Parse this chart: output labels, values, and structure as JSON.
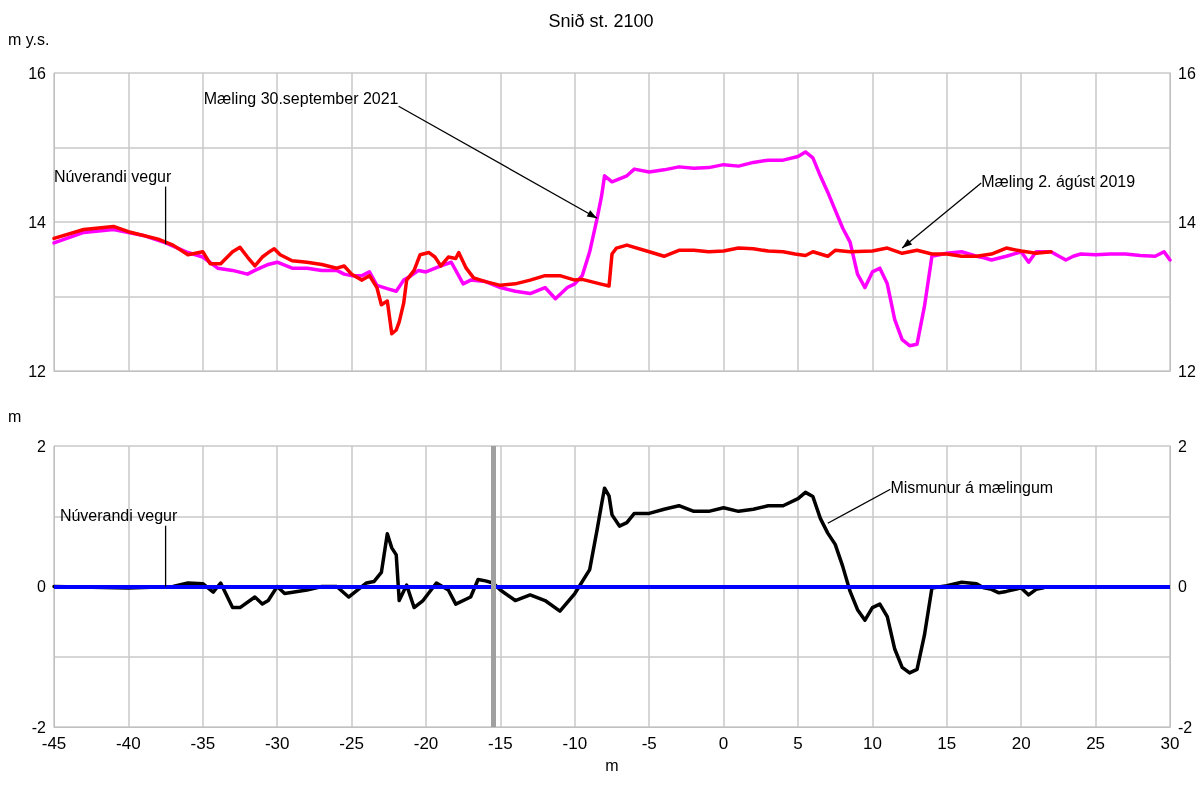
{
  "chart_data": [
    {
      "type": "line",
      "title": "Snið st. 2100",
      "ylabel": "m y.s.",
      "xlim": [
        -45,
        30
      ],
      "xticks": [
        -45,
        -40,
        -35,
        -30,
        -25,
        -20,
        -15,
        -10,
        -5,
        0,
        5,
        10,
        15,
        20,
        25,
        30
      ],
      "ylim": [
        12,
        16
      ],
      "yticks": [
        12,
        {
          "value": 13,
          "label": null
        },
        14,
        {
          "value": 15,
          "label": null
        },
        16
      ],
      "y2lim": [
        12,
        16
      ],
      "y2ticks": [
        12,
        14,
        16
      ],
      "tick_labels": "y",
      "grid": true,
      "line_style": "solid",
      "series": [
        {
          "color": "#ff00ff",
          "x": [
            -45,
            -43,
            -41,
            -39,
            -37.5,
            -36,
            -35,
            -34,
            -33,
            -32,
            -31.5,
            -30.6,
            -30,
            -29,
            -28,
            -27,
            -26,
            -25.5,
            -25,
            -24.3,
            -23.8,
            -23.3,
            -22.5,
            -22,
            -21.5,
            -21,
            -20.5,
            -20,
            -19,
            -18.3,
            -17.5,
            -17,
            -16,
            -15,
            -14,
            -13,
            -12,
            -11.3,
            -10.5,
            -10,
            -9.5,
            -9,
            -8.5,
            -8.2,
            -8,
            -7.5,
            -6.5,
            -6,
            -5,
            -4,
            -3,
            -2,
            -1,
            0,
            1,
            2,
            3,
            4,
            5,
            5.5,
            6,
            6.5,
            7,
            7.5,
            8,
            8.5,
            9,
            9.5,
            10,
            10.5,
            11,
            11.5,
            12,
            12.5,
            13,
            13.5,
            14,
            15,
            16,
            17,
            17.5,
            18,
            19,
            20,
            20.5,
            21,
            22,
            23,
            23.5,
            24,
            25,
            26,
            27,
            28,
            29,
            29.6,
            30
          ],
          "values": [
            13.72,
            13.86,
            13.9,
            13.82,
            13.72,
            13.59,
            13.53,
            13.38,
            13.35,
            13.3,
            13.35,
            13.43,
            13.46,
            13.38,
            13.38,
            13.35,
            13.35,
            13.3,
            13.28,
            13.28,
            13.33,
            13.15,
            13.1,
            13.07,
            13.22,
            13.28,
            13.35,
            13.33,
            13.41,
            13.46,
            13.17,
            13.22,
            13.2,
            13.12,
            13.07,
            13.04,
            13.12,
            12.97,
            13.12,
            13.17,
            13.28,
            13.6,
            14.05,
            14.35,
            14.62,
            14.54,
            14.62,
            14.71,
            14.67,
            14.7,
            14.74,
            14.72,
            14.73,
            14.77,
            14.75,
            14.8,
            14.83,
            14.83,
            14.88,
            14.94,
            14.86,
            14.62,
            14.4,
            14.16,
            13.92,
            13.73,
            13.3,
            13.12,
            13.33,
            13.38,
            13.17,
            12.69,
            12.42,
            12.34,
            12.36,
            12.87,
            13.54,
            13.58,
            13.6,
            13.54,
            13.52,
            13.49,
            13.54,
            13.6,
            13.46,
            13.6,
            13.6,
            13.49,
            13.54,
            13.57,
            13.56,
            13.57,
            13.57,
            13.55,
            13.54,
            13.6,
            13.49
          ]
        },
        {
          "color": "#ff0000",
          "x": [
            -45,
            -43,
            -41,
            -40,
            -38,
            -37,
            -36,
            -35,
            -34.5,
            -33.8,
            -33,
            -32.5,
            -32,
            -31.5,
            -31,
            -30.6,
            -30.2,
            -29.8,
            -29,
            -28,
            -27,
            -26,
            -25.5,
            -25,
            -24.3,
            -23.8,
            -23.3,
            -23,
            -22.6,
            -22.3,
            -22,
            -21.8,
            -21.5,
            -21.3,
            -20.8,
            -20.4,
            -19.8,
            -19.4,
            -19,
            -18.5,
            -18,
            -17.8,
            -17.3,
            -16.8,
            -16,
            -15,
            -14,
            -13,
            -12,
            -11,
            -10,
            -9.5,
            -8.3,
            -7.7,
            -7.5,
            -7.2,
            -6.5,
            -5,
            -4,
            -3,
            -2,
            -1,
            0,
            1,
            2,
            3,
            4,
            4.8,
            5.5,
            6,
            7,
            7.5,
            8.5,
            10,
            11,
            12,
            13,
            14,
            15,
            16,
            17,
            18,
            19,
            20,
            21,
            22
          ],
          "values": [
            13.78,
            13.9,
            13.94,
            13.87,
            13.77,
            13.69,
            13.56,
            13.6,
            13.44,
            13.44,
            13.6,
            13.66,
            13.53,
            13.41,
            13.53,
            13.59,
            13.64,
            13.56,
            13.48,
            13.46,
            13.43,
            13.38,
            13.41,
            13.3,
            13.22,
            13.28,
            13.12,
            12.89,
            12.94,
            12.5,
            12.55,
            12.66,
            12.91,
            13.22,
            13.35,
            13.56,
            13.59,
            13.53,
            13.41,
            13.53,
            13.51,
            13.59,
            13.38,
            13.25,
            13.2,
            13.15,
            13.17,
            13.22,
            13.28,
            13.28,
            13.22,
            13.23,
            13.17,
            13.14,
            13.57,
            13.65,
            13.69,
            13.6,
            13.54,
            13.62,
            13.62,
            13.6,
            13.61,
            13.65,
            13.64,
            13.61,
            13.6,
            13.57,
            13.55,
            13.6,
            13.54,
            13.62,
            13.6,
            13.61,
            13.65,
            13.58,
            13.62,
            13.57,
            13.57,
            13.54,
            13.54,
            13.57,
            13.65,
            13.61,
            13.58,
            13.6
          ]
        }
      ],
      "annotations": [
        {
          "text": "Núverandi vegur",
          "x": -37.5,
          "y": 13.7
        },
        {
          "text": "Mæling 30.september 2021",
          "x": -8.5,
          "y": 14.05
        },
        {
          "text": "Mæling 2. ágúst 2019",
          "x": 12,
          "y": 13.65
        }
      ]
    },
    {
      "type": "line",
      "xlabel": "m",
      "ylabel": "m",
      "xlim": [
        -45,
        30
      ],
      "xticks": [
        -45,
        -40,
        -35,
        -30,
        -25,
        -20,
        -15,
        -10,
        -5,
        0,
        5,
        10,
        15,
        20,
        25,
        30
      ],
      "ylim": [
        -2,
        2
      ],
      "yticks": [
        -2,
        {
          "value": -1,
          "label": null
        },
        0,
        {
          "value": 1,
          "label": null
        },
        2
      ],
      "y2lim": [
        -2,
        2
      ],
      "y2ticks": [
        -2,
        0,
        2
      ],
      "grid": true,
      "line_style": "solid",
      "series": [
        {
          "color": "#000000",
          "x": [
            -45,
            -40,
            -37,
            -36,
            -35,
            -34.3,
            -33.8,
            -33,
            -32.5,
            -31.5,
            -31,
            -30.6,
            -30,
            -29.5,
            -28,
            -27,
            -26,
            -25.2,
            -24,
            -23.5,
            -23,
            -22.6,
            -22.3,
            -22,
            -21.8,
            -21.3,
            -20.8,
            -20.2,
            -19.3,
            -18.5,
            -18,
            -17,
            -16.5,
            -16,
            -15.5,
            -15,
            -14,
            -13,
            -12,
            -11,
            -10,
            -9,
            -8.5,
            -8.2,
            -8,
            -7.7,
            -7.5,
            -7,
            -6.5,
            -6,
            -5,
            -4,
            -3,
            -2,
            -1,
            0,
            1,
            2,
            3,
            4,
            5,
            5.5,
            6,
            6.5,
            7,
            7.5,
            8,
            8.5,
            9,
            9.5,
            10,
            10.5,
            11,
            11.5,
            12,
            12.5,
            13,
            13.5,
            14,
            15,
            16,
            17,
            17.5,
            18,
            18.5,
            19,
            20,
            20.5,
            21,
            21.5
          ],
          "values": [
            0,
            -0.02,
            0,
            0.05,
            0.04,
            -0.08,
            0.05,
            -0.3,
            -0.3,
            -0.15,
            -0.25,
            -0.2,
            0,
            -0.1,
            -0.05,
            0,
            0,
            -0.15,
            0.05,
            0.07,
            0.2,
            0.75,
            0.55,
            0.45,
            -0.2,
            0.02,
            -0.3,
            -0.2,
            0.05,
            -0.05,
            -0.25,
            -0.15,
            0.1,
            0.08,
            0.05,
            -0.05,
            -0.2,
            -0.12,
            -0.2,
            -0.35,
            -0.1,
            0.24,
            0.81,
            1.17,
            1.4,
            1.29,
            1.02,
            0.86,
            0.91,
            1.04,
            1.04,
            1.1,
            1.15,
            1.07,
            1.07,
            1.12,
            1.07,
            1.1,
            1.15,
            1.15,
            1.25,
            1.34,
            1.28,
            0.97,
            0.76,
            0.6,
            0.29,
            -0.07,
            -0.33,
            -0.48,
            -0.3,
            -0.25,
            -0.43,
            -0.89,
            -1.15,
            -1.23,
            -1.18,
            -0.69,
            -0.02,
            0.01,
            0.06,
            0.04,
            -0.02,
            -0.04,
            -0.09,
            -0.07,
            -0.02,
            -0.12,
            -0.04,
            -0.02
          ]
        }
      ],
      "ref_lines": [
        {
          "axis": "y",
          "value": 0,
          "color": "#0000ff"
        },
        {
          "axis": "x",
          "value": -15.5,
          "color": "#a0a0a0"
        }
      ],
      "annotations": [
        {
          "text": "Núverandi vegur",
          "x": -37.5,
          "y": 0
        },
        {
          "text": "Mismunur á mælingum",
          "x": 7,
          "y": 0.9
        }
      ]
    }
  ]
}
